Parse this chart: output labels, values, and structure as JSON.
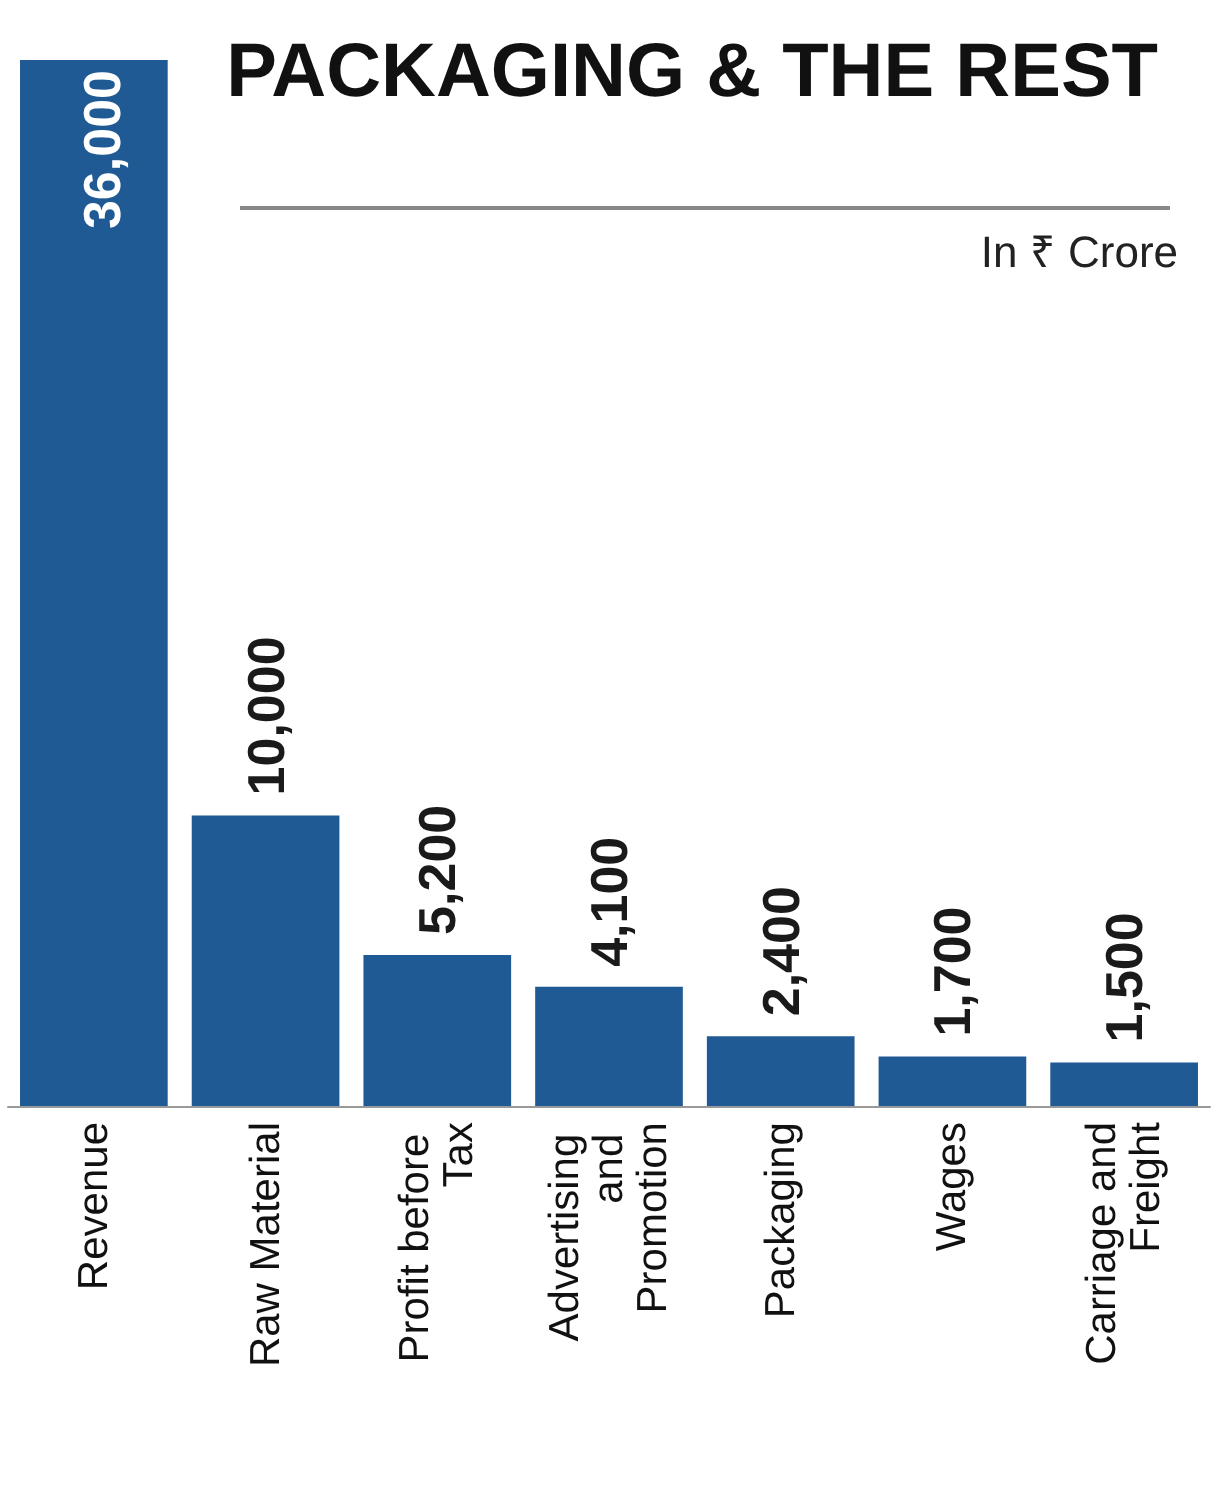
{
  "chart_data": {
    "type": "bar",
    "title": "PACKAGING & THE REST",
    "subtitle": "In ₹ Crore",
    "categories": [
      "Revenue",
      "Raw Material",
      "Profit before Tax",
      "Advertising and Promotion",
      "Packaging",
      "Wages",
      "Carriage and Freight"
    ],
    "values": [
      36000,
      10000,
      5200,
      4100,
      2400,
      1700,
      1500
    ],
    "value_labels": [
      "36,000",
      "10,000",
      "5,200",
      "4,100",
      "2,400",
      "1,700",
      "1,500"
    ],
    "color": "#1f5a94"
  }
}
